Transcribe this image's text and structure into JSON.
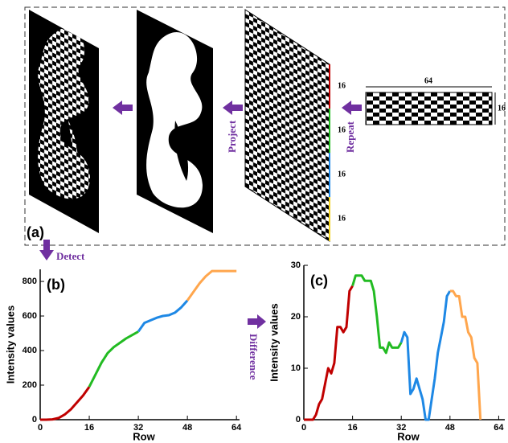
{
  "diagram": {
    "panel_label": "(a)",
    "project": "Project",
    "repeat": "Repeat",
    "detect": "Detect",
    "difference": "Difference",
    "width_label": "64",
    "height_label": "16",
    "segment_labels": [
      "16",
      "16",
      "16",
      "16"
    ]
  },
  "chart_data": [
    {
      "type": "line",
      "panel_label": "(b)",
      "xlabel": "Row",
      "ylabel": "Intensity values",
      "xlim": [
        0,
        65
      ],
      "ylim": [
        0,
        870
      ],
      "xticks": [
        0,
        16,
        32,
        48,
        64
      ],
      "yticks": [
        0,
        200,
        400,
        600,
        800
      ],
      "series": [
        {
          "color": "#c00000",
          "x": [
            0,
            2,
            4,
            6,
            8,
            10,
            12,
            14,
            16
          ],
          "values": [
            0,
            0,
            2,
            10,
            30,
            60,
            100,
            140,
            190
          ]
        },
        {
          "color": "#22bb22",
          "x": [
            16,
            18,
            20,
            22,
            24,
            26,
            28,
            30,
            32
          ],
          "values": [
            190,
            260,
            330,
            385,
            420,
            445,
            470,
            490,
            510
          ]
        },
        {
          "color": "#1e88e5",
          "x": [
            32,
            34,
            36,
            38,
            40,
            42,
            44,
            46,
            48
          ],
          "values": [
            510,
            560,
            575,
            590,
            600,
            605,
            620,
            650,
            690
          ]
        },
        {
          "color": "#ffa64d",
          "x": [
            48,
            50,
            52,
            54,
            56,
            58,
            60,
            62,
            64
          ],
          "values": [
            690,
            740,
            790,
            830,
            860,
            860,
            860,
            860,
            860
          ]
        }
      ]
    },
    {
      "type": "line",
      "panel_label": "(c)",
      "xlabel": "Row",
      "ylabel": "Intensity values",
      "xlim": [
        0,
        66
      ],
      "ylim": [
        0,
        30
      ],
      "xticks": [
        0,
        16,
        32,
        48,
        64
      ],
      "yticks": [
        0,
        10,
        20,
        30
      ],
      "series": [
        {
          "color": "#c00000",
          "x": [
            0,
            1,
            2,
            3,
            4,
            5,
            6,
            7,
            8,
            9,
            10,
            11,
            12,
            13,
            14,
            15,
            16
          ],
          "values": [
            0,
            0,
            0,
            0,
            1,
            3,
            4,
            7,
            10,
            9,
            11,
            18,
            18,
            17,
            18,
            25,
            26
          ]
        },
        {
          "color": "#22bb22",
          "x": [
            16,
            17,
            18,
            19,
            20,
            21,
            22,
            23,
            24,
            25,
            26,
            27,
            28,
            29,
            30,
            31,
            32
          ],
          "values": [
            26,
            28,
            28,
            28,
            27,
            27,
            27,
            25,
            20,
            14,
            14,
            13,
            15,
            14,
            14,
            14,
            15
          ]
        },
        {
          "color": "#1e88e5",
          "x": [
            32,
            33,
            34,
            35,
            36,
            37,
            38,
            39,
            40,
            41,
            42,
            43,
            44,
            45,
            46,
            47,
            48
          ],
          "values": [
            15,
            17,
            16,
            5,
            6,
            8,
            6,
            4,
            0,
            0,
            4,
            8,
            13,
            16,
            19,
            24,
            25
          ]
        },
        {
          "color": "#ffa64d",
          "x": [
            48,
            49,
            50,
            51,
            52,
            53,
            54,
            55,
            56,
            57,
            58
          ],
          "values": [
            25,
            25,
            24,
            24,
            20,
            20,
            17,
            16,
            12,
            11,
            0
          ]
        }
      ]
    }
  ]
}
